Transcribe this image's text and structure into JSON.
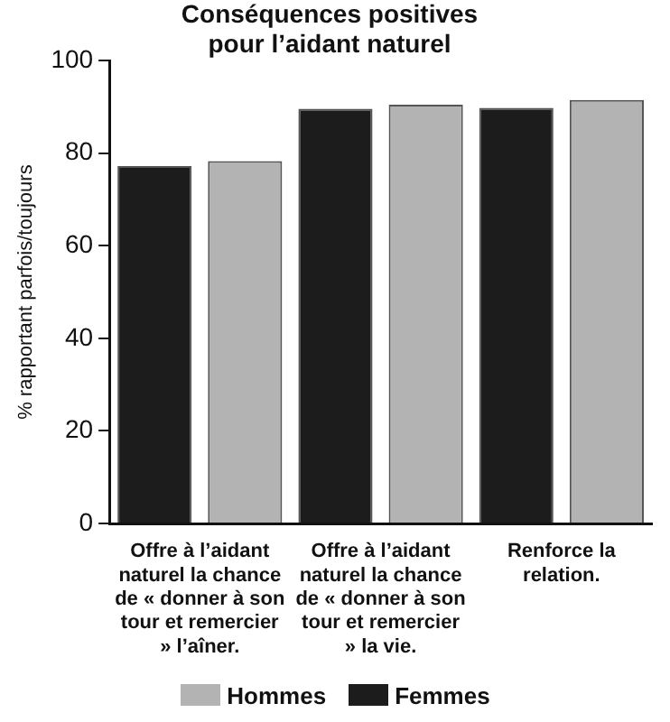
{
  "chart_data": {
    "type": "bar",
    "title": "Conséquences positives pour l’aidant naturel",
    "ylabel": "% rapportant parfois/toujours",
    "categories": [
      "Offre à l’aidant naturel la chance de « donner à son tour et remercier » l’aîner.",
      "Offre à l’aidant naturel la chance de « donner à son tour et remercier » la vie.",
      "Renforce la relation."
    ],
    "series": [
      {
        "name": "Femmes",
        "color": "#1c1c1c",
        "values": [
          77.2,
          89.6,
          89.8
        ]
      },
      {
        "name": "Hommes",
        "color": "#b3b3b3",
        "values": [
          78.3,
          90.5,
          91.5
        ]
      }
    ],
    "ylim": [
      0,
      100
    ],
    "yticks": [
      0,
      20,
      40,
      60,
      80,
      100
    ],
    "grid": false,
    "legend": "bottom"
  }
}
